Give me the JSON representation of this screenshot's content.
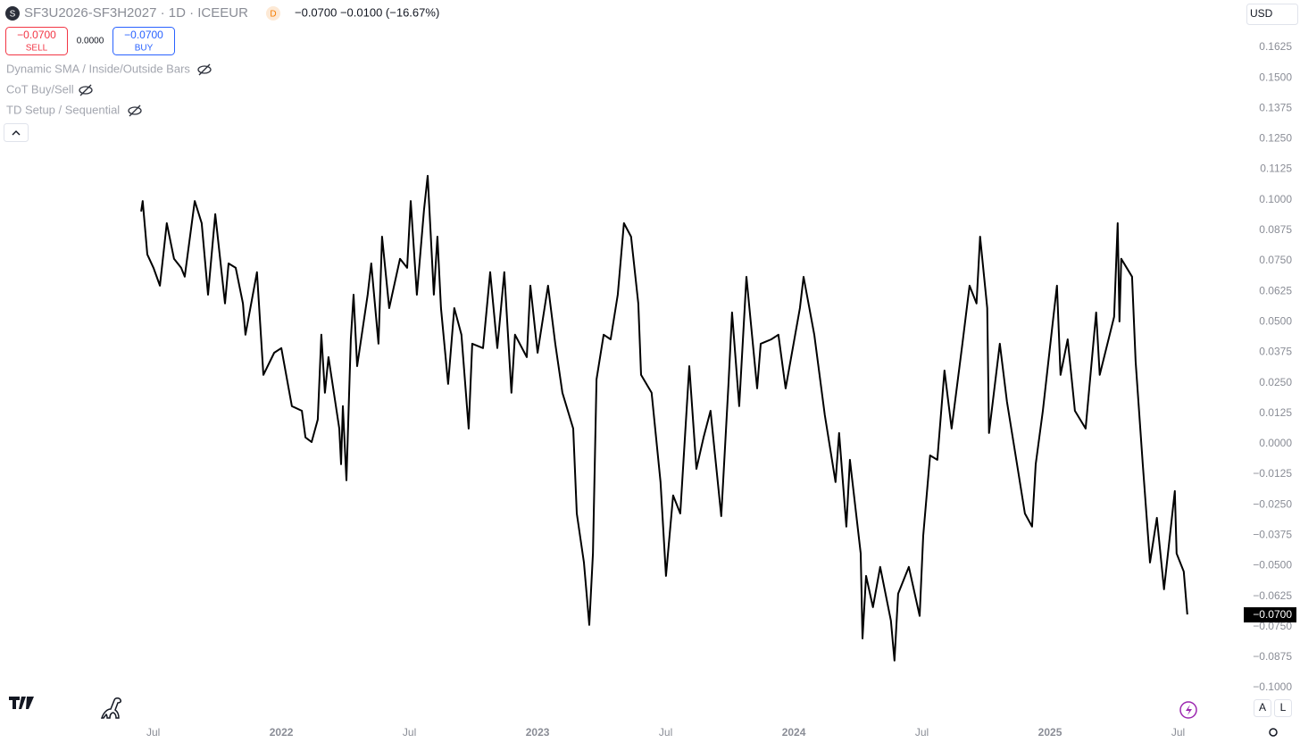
{
  "ui": {
    "symbol_icon": "S",
    "symbol": "SF3U2026-SF3H2027 · 1D · ICEEUR",
    "session": "D",
    "quote": "−0.0700 −0.0100 (−16.67%)",
    "sell_price": "−0.0700",
    "sell": "SELL",
    "spread": "0.0000",
    "buy_price": "−0.0700",
    "buy": "BUY",
    "indicators": [
      "Dynamic SMA / Inside/Outside Bars",
      "CoT Buy/Sell",
      "TD Setup / Sequential"
    ],
    "currency": "USD",
    "last_price_label": "−0.0700",
    "auto": "A",
    "log": "L"
  },
  "chart_data": {
    "type": "line",
    "color": "#000000",
    "grid": false,
    "x": [
      2021.453,
      2021.459,
      2021.477,
      2021.501,
      2021.526,
      2021.553,
      2021.581,
      2021.609,
      2021.623,
      2021.662,
      2021.689,
      2021.714,
      2021.742,
      2021.78,
      2021.794,
      2021.822,
      2021.85,
      2021.86,
      2021.905,
      2021.93,
      2021.972,
      2022.0,
      2022.041,
      2022.08,
      2022.094,
      2022.118,
      2022.142,
      2022.156,
      2022.17,
      2022.184,
      2022.226,
      2022.233,
      2022.24,
      2022.254,
      2022.271,
      2022.282,
      2022.296,
      2022.337,
      2022.351,
      2022.379,
      2022.393,
      2022.421,
      2022.463,
      2022.491,
      2022.505,
      2022.529,
      2022.557,
      2022.571,
      2022.595,
      2022.609,
      2022.623,
      2022.651,
      2022.675,
      2022.703,
      2022.731,
      2022.745,
      2022.787,
      2022.815,
      2022.843,
      2022.87,
      2022.898,
      2022.912,
      2022.958,
      2022.972,
      2023.0,
      2023.041,
      2023.069,
      2023.097,
      2023.139,
      2023.153,
      2023.181,
      2023.202,
      2023.216,
      2023.23,
      2023.258,
      2023.285,
      2023.313,
      2023.337,
      2023.365,
      2023.393,
      2023.404,
      2023.445,
      2023.48,
      2023.501,
      2023.529,
      2023.557,
      2023.592,
      2023.62,
      2023.648,
      2023.675,
      2023.717,
      2023.745,
      2023.759,
      2023.787,
      2023.815,
      2023.857,
      2023.871,
      2023.912,
      2023.94,
      2023.968,
      2024.024,
      2024.038,
      2024.08,
      2024.121,
      2024.163,
      2024.177,
      2024.205,
      2024.219,
      2024.261,
      2024.268,
      2024.282,
      2024.309,
      2024.337,
      2024.379,
      2024.393,
      2024.407,
      2024.449,
      2024.491,
      2024.505,
      2024.532,
      2024.56,
      2024.588,
      2024.616,
      2024.658,
      2024.686,
      2024.713,
      2024.727,
      2024.755,
      2024.762,
      2024.804,
      2024.832,
      2024.874,
      2024.902,
      2024.93,
      2024.944,
      2024.972,
      2025.013,
      2025.027,
      2025.041,
      2025.069,
      2025.097,
      2025.139,
      2025.18,
      2025.194,
      2025.25,
      2025.264,
      2025.271,
      2025.278,
      2025.32,
      2025.334,
      2025.362,
      2025.39,
      2025.417,
      2025.445,
      2025.487,
      2025.494,
      2025.522,
      2025.536
    ],
    "values": [
      0.0952,
      0.0995,
      0.0776,
      0.0721,
      0.0648,
      0.0904,
      0.0758,
      0.0721,
      0.0685,
      0.0995,
      0.0904,
      0.0611,
      0.0941,
      0.0575,
      0.0739,
      0.0721,
      0.0575,
      0.0447,
      0.0703,
      0.0282,
      0.0373,
      0.0392,
      0.0154,
      0.0135,
      0.0026,
      0.0007,
      0.0099,
      0.0447,
      0.0209,
      0.0355,
      0.0062,
      -0.0084,
      0.0154,
      -0.015,
      0.0428,
      0.0611,
      0.0318,
      0.0611,
      0.0739,
      0.041,
      0.0849,
      0.0556,
      0.0758,
      0.0721,
      0.0995,
      0.0611,
      0.0959,
      0.1098,
      0.0611,
      0.0849,
      0.0556,
      0.0245,
      0.0556,
      0.0447,
      0.0062,
      0.041,
      0.0392,
      0.0703,
      0.0392,
      0.0703,
      0.0209,
      0.0447,
      0.0355,
      0.0648,
      0.0373,
      0.0648,
      0.041,
      0.0209,
      0.0062,
      -0.0286,
      -0.0487,
      -0.0743,
      -0.045,
      0.0264,
      0.0447,
      0.0428,
      0.0611,
      0.0904,
      0.0849,
      0.0575,
      0.0282,
      0.0209,
      -0.0157,
      -0.0542,
      -0.0212,
      -0.0286,
      0.0318,
      -0.0103,
      0.0026,
      0.0135,
      -0.0297,
      0.0245,
      0.0538,
      0.0154,
      0.0684,
      0.0227,
      0.041,
      0.0428,
      0.0447,
      0.0227,
      0.0556,
      0.0684,
      0.0447,
      0.0117,
      -0.0157,
      0.0044,
      -0.034,
      -0.0066,
      -0.045,
      -0.0798,
      -0.0542,
      -0.067,
      -0.0505,
      -0.0725,
      -0.0889,
      -0.0615,
      -0.0505,
      -0.0706,
      -0.0377,
      -0.0048,
      -0.0066,
      0.03,
      0.0062,
      0.041,
      0.0648,
      0.0575,
      0.0849,
      0.0556,
      0.0044,
      0.041,
      0.0172,
      -0.0103,
      -0.0286,
      -0.034,
      -0.0084,
      0.0135,
      0.052,
      0.0648,
      0.0282,
      0.0428,
      0.0135,
      0.0062,
      0.0538,
      0.0282,
      0.052,
      0.0904,
      0.0501,
      0.0758,
      0.0685,
      0.0337,
      -0.0084,
      -0.0487,
      -0.0304,
      -0.0597,
      -0.0194,
      -0.045,
      -0.0524,
      -0.07
    ],
    "xlim": [
      2020.902,
      2025.7456
    ],
    "xticks": [
      {
        "value": 2021.5,
        "label": "Jul"
      },
      2022,
      {
        "value": 2022.5,
        "label": "Jul"
      },
      2023,
      {
        "value": 2023.5,
        "label": "Jul"
      },
      2024,
      {
        "value": 2024.5,
        "label": "Jul"
      },
      2025,
      {
        "value": 2025.5,
        "label": "Jul"
      }
    ],
    "ylim": [
      -0.1139,
      0.1819
    ],
    "yticks": [
      0.1625,
      {
        "value": 0.15,
        "label": "0.1500"
      },
      0.1375,
      {
        "value": 0.125,
        "label": "0.1250"
      },
      0.1125,
      {
        "value": 0.1,
        "label": "0.1000"
      },
      0.0875,
      {
        "value": 0.075,
        "label": "0.0750"
      },
      0.0625,
      {
        "value": 0.05,
        "label": "0.0500"
      },
      0.0375,
      {
        "value": 0.025,
        "label": "0.0250"
      },
      0.0125,
      {
        "value": 0,
        "label": "0.0000"
      },
      {
        "value": -0.0125,
        "label": "−0.0125"
      },
      {
        "value": -0.025,
        "label": "−0.0250"
      },
      {
        "value": -0.0375,
        "label": "−0.0375"
      },
      {
        "value": -0.05,
        "label": "−0.0500"
      },
      {
        "value": -0.0625,
        "label": "−0.0625"
      },
      {
        "value": -0.075,
        "label": "−0.0750"
      },
      {
        "value": -0.0875,
        "label": "−0.0875"
      },
      {
        "value": -0.1,
        "label": "−0.1000"
      }
    ]
  }
}
